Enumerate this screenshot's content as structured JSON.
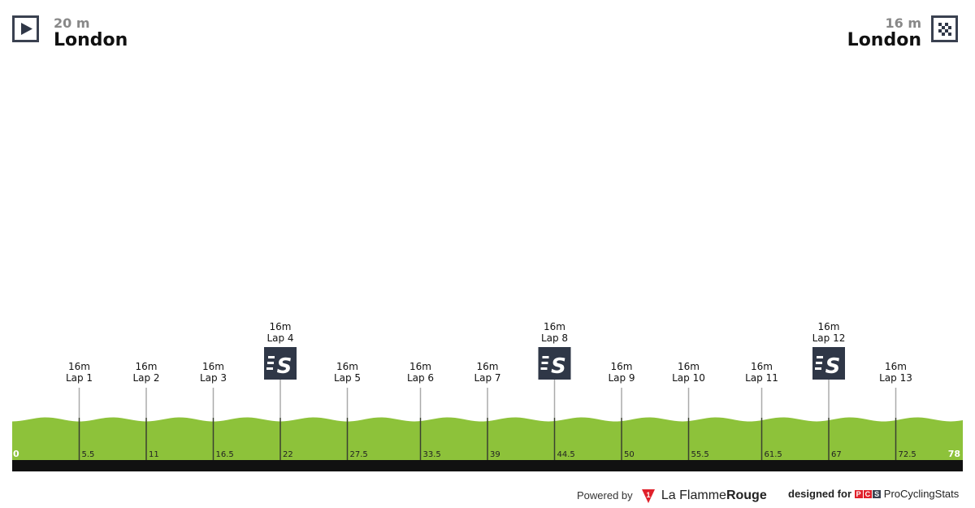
{
  "start": {
    "altitude": "20 m",
    "city": "London",
    "icon": "play-icon"
  },
  "finish": {
    "altitude": "16 m",
    "city": "London",
    "icon": "checkered-flag-icon"
  },
  "chart_data": {
    "type": "area",
    "xlim": [
      0,
      78
    ],
    "x_ticks": [
      "0",
      "5.5",
      "11",
      "16.5",
      "22",
      "27.5",
      "33.5",
      "39",
      "44.5",
      "50",
      "55.5",
      "61.5",
      "67",
      "72.5",
      "78"
    ],
    "profile_color": "#8dc23a",
    "markers": [
      {
        "km": 5.5,
        "alt": "16m",
        "label": "Lap 1",
        "sprint": false
      },
      {
        "km": 11,
        "alt": "16m",
        "label": "Lap 2",
        "sprint": false
      },
      {
        "km": 16.5,
        "alt": "16m",
        "label": "Lap 3",
        "sprint": false
      },
      {
        "km": 22,
        "alt": "16m",
        "label": "Lap 4",
        "sprint": true
      },
      {
        "km": 27.5,
        "alt": "16m",
        "label": "Lap 5",
        "sprint": false
      },
      {
        "km": 33.5,
        "alt": "16m",
        "label": "Lap 6",
        "sprint": false
      },
      {
        "km": 39,
        "alt": "16m",
        "label": "Lap 7",
        "sprint": false
      },
      {
        "km": 44.5,
        "alt": "16m",
        "label": "Lap 8",
        "sprint": true
      },
      {
        "km": 50,
        "alt": "16m",
        "label": "Lap 9",
        "sprint": false
      },
      {
        "km": 55.5,
        "alt": "16m",
        "label": "Lap 10",
        "sprint": false
      },
      {
        "km": 61.5,
        "alt": "16m",
        "label": "Lap 11",
        "sprint": false
      },
      {
        "km": 67,
        "alt": "16m",
        "label": "Lap 12",
        "sprint": true
      },
      {
        "km": 72.5,
        "alt": "16m",
        "label": "Lap 13",
        "sprint": false
      }
    ]
  },
  "footer": {
    "powered": "Powered by",
    "brand1": "La Flamme",
    "brand2": "Rouge",
    "designed": "designed for",
    "pcs": "ProCyclingStats"
  }
}
